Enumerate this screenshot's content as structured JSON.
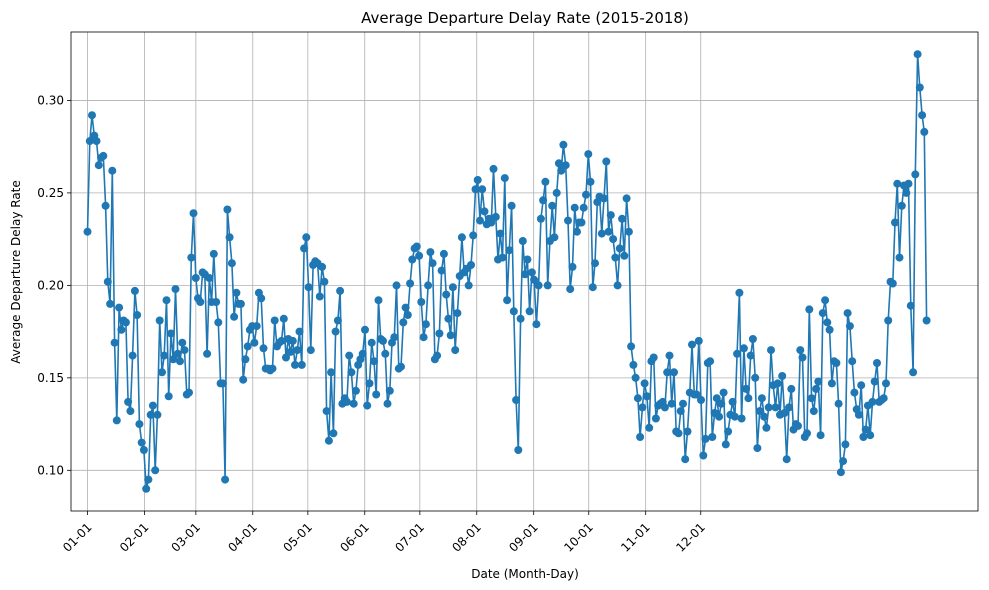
{
  "chart_data": {
    "type": "line",
    "title": "Average Departure Delay Rate (2015-2018)",
    "xlabel": "Date (Month-Day)",
    "ylabel": "Average Departure Delay Rate",
    "x_tick_labels": [
      "01-01",
      "02-01",
      "03-01",
      "04-01",
      "05-01",
      "06-01",
      "07-01",
      "08-01",
      "09-01",
      "10-01",
      "11-01",
      "12-01"
    ],
    "y_ticks": [
      0.1,
      0.15,
      0.2,
      0.25,
      0.3
    ],
    "y_tick_labels": [
      "0.10",
      "0.15",
      "0.20",
      "0.25",
      "0.30"
    ],
    "ylim": [
      0.078,
      0.337
    ],
    "xlim": [
      -9,
      485
    ],
    "grid": true,
    "marker": "circle",
    "color": "#1f77b4",
    "series": [
      {
        "values": [
          0.229,
          0.278,
          0.292,
          0.281,
          0.278,
          0.265,
          0.269,
          0.27,
          0.243,
          0.202,
          0.19,
          0.262,
          0.169,
          0.127,
          0.188,
          0.176,
          0.181,
          0.18,
          0.137,
          0.132,
          0.162,
          0.197,
          0.184,
          0.125,
          0.115,
          0.111,
          0.09,
          0.095,
          0.13,
          0.135,
          0.1,
          0.13,
          0.181,
          0.153,
          0.162,
          0.192,
          0.14,
          0.174,
          0.16,
          0.198,
          0.163,
          0.159,
          0.169,
          0.165,
          0.141,
          0.142,
          0.215,
          0.239,
          0.204,
          0.193,
          0.191,
          0.207,
          0.206,
          0.163,
          0.204,
          0.191,
          0.217,
          0.191,
          0.18,
          0.147,
          0.147,
          0.095,
          0.241,
          0.226,
          0.212,
          0.183,
          0.196,
          0.19,
          0.19,
          0.149,
          0.16,
          0.167,
          0.176,
          0.178,
          0.169,
          0.178,
          0.196,
          0.193,
          0.166,
          0.155,
          0.155,
          0.154,
          0.155,
          0.181,
          0.167,
          0.169,
          0.17,
          0.182,
          0.161,
          0.171,
          0.164,
          0.17,
          0.157,
          0.165,
          0.175,
          0.157,
          0.22,
          0.226,
          0.199,
          0.165,
          0.211,
          0.213,
          0.212,
          0.194,
          0.21,
          0.202,
          0.132,
          0.116,
          0.153,
          0.12,
          0.175,
          0.181,
          0.197,
          0.136,
          0.139,
          0.137,
          0.162,
          0.153,
          0.136,
          0.143,
          0.157,
          0.16,
          0.163,
          0.176,
          0.135,
          0.147,
          0.169,
          0.159,
          0.141,
          0.192,
          0.171,
          0.17,
          0.163,
          0.136,
          0.143,
          0.169,
          0.172,
          0.2,
          0.155,
          0.156,
          0.18,
          0.188,
          0.184,
          0.201,
          0.214,
          0.22,
          0.221,
          0.216,
          0.191,
          0.172,
          0.179,
          0.2,
          0.218,
          0.212,
          0.16,
          0.162,
          0.174,
          0.208,
          0.217,
          0.195,
          0.182,
          0.173,
          0.199,
          0.165,
          0.185,
          0.205,
          0.226,
          0.207,
          0.209,
          0.2,
          0.211,
          0.227,
          0.252,
          0.257,
          0.235,
          0.252,
          0.24,
          0.233,
          0.236,
          0.234,
          0.263,
          0.237,
          0.214,
          0.228,
          0.215,
          0.258,
          0.192,
          0.219,
          0.243,
          0.186,
          0.138,
          0.111,
          0.182,
          0.224,
          0.206,
          0.214,
          0.186,
          0.207,
          0.203,
          0.179,
          0.2,
          0.236,
          0.246,
          0.256,
          0.2,
          0.224,
          0.243,
          0.226,
          0.25,
          0.266,
          0.262,
          0.276,
          0.265,
          0.235,
          0.198,
          0.21,
          0.242,
          0.229,
          0.234,
          0.234,
          0.242,
          0.249,
          0.271,
          0.256,
          0.199,
          0.212,
          0.245,
          0.248,
          0.228,
          0.247,
          0.267,
          0.229,
          0.238,
          0.225,
          0.215,
          0.2,
          0.22,
          0.236,
          0.216,
          0.247,
          0.229,
          0.167,
          0.157,
          0.15,
          0.139,
          0.118,
          0.134,
          0.147,
          0.14,
          0.123,
          0.159,
          0.161,
          0.128,
          0.135,
          0.136,
          0.137,
          0.134,
          0.153,
          0.162,
          0.136,
          0.153,
          0.121,
          0.12,
          0.132,
          0.136,
          0.106,
          0.121,
          0.142,
          0.168,
          0.141,
          0.141,
          0.17,
          0.138,
          0.108,
          0.117,
          0.158,
          0.159,
          0.118,
          0.131,
          0.139,
          0.129,
          0.136,
          0.142,
          0.114,
          0.121,
          0.13,
          0.137,
          0.129,
          0.163,
          0.196,
          0.128,
          0.166,
          0.144,
          0.139,
          0.162,
          0.171,
          0.15,
          0.112,
          0.132,
          0.139,
          0.129,
          0.123,
          0.134,
          0.165,
          0.146,
          0.134,
          0.147,
          0.13,
          0.151,
          0.131,
          0.106,
          0.134,
          0.144,
          0.122,
          0.125,
          0.124,
          0.165,
          0.161,
          0.118,
          0.12,
          0.187,
          0.139,
          0.132,
          0.144,
          0.148,
          0.119,
          0.185,
          0.192,
          0.18,
          0.176,
          0.147,
          0.159,
          0.158,
          0.136,
          0.099,
          0.105,
          0.114,
          0.185,
          0.178,
          0.159,
          0.142,
          0.133,
          0.13,
          0.146,
          0.118,
          0.122,
          0.135,
          0.119,
          0.137,
          0.148,
          0.158,
          0.137,
          0.138,
          0.139,
          0.147,
          0.181,
          0.202,
          0.201,
          0.234,
          0.255,
          0.215,
          0.243,
          0.254,
          0.25,
          0.255,
          0.189,
          0.153,
          0.26,
          0.325,
          0.307,
          0.292,
          0.283,
          0.181
        ]
      }
    ]
  }
}
